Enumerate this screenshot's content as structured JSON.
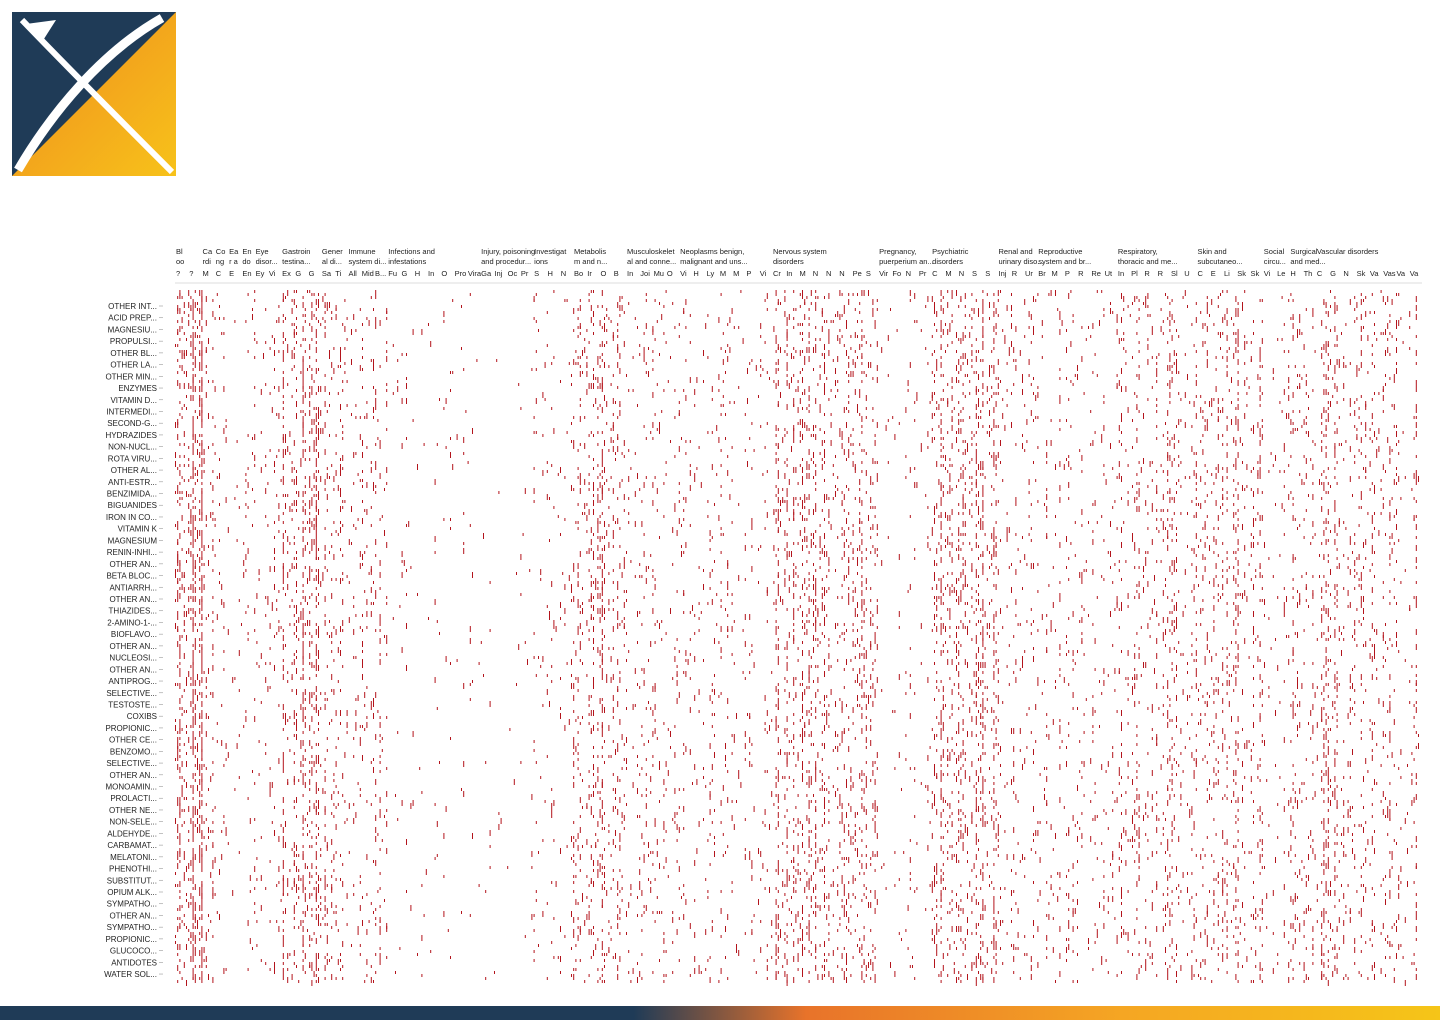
{
  "page": {
    "accent_navy": "#1f3b57",
    "accent_orange": "#f0901e",
    "accent_yellow": "#f5c518",
    "cell_color": "#b3141c"
  },
  "logo": {
    "icon": "x-logo-icon"
  },
  "chart_data": {
    "type": "heatmap",
    "title": "",
    "xlabel": "",
    "ylabel": "",
    "grid": false,
    "legend": "none",
    "column_groups": [
      {
        "label": [
          "Bl",
          "oo"
        ],
        "subs": [
          "?",
          "?"
        ]
      },
      {
        "label": [
          "Ca",
          "rdi"
        ],
        "subs": [
          "M"
        ]
      },
      {
        "label": [
          "Co",
          "ng"
        ],
        "subs": [
          "C"
        ]
      },
      {
        "label": [
          "Ea",
          "r a"
        ],
        "subs": [
          "E"
        ]
      },
      {
        "label": [
          "En",
          "do"
        ],
        "subs": [
          "En"
        ]
      },
      {
        "label": [
          "Eye",
          "disor..."
        ],
        "subs": [
          "Ey",
          "Vi"
        ]
      },
      {
        "label": [
          "Gastroin",
          "testina..."
        ],
        "subs": [
          "Ex",
          "G",
          "G"
        ]
      },
      {
        "label": [
          "Gener",
          "al di..."
        ],
        "subs": [
          "Sa",
          "Ti"
        ]
      },
      {
        "label": [
          "Immune",
          "system di..."
        ],
        "subs": [
          "All",
          "Mid",
          "B..."
        ]
      },
      {
        "label": [
          "Infections and",
          "infestations"
        ],
        "subs": [
          "Fu",
          "G",
          "H",
          "In",
          "O",
          "Pro",
          "Vira"
        ]
      },
      {
        "label": [
          "Injury, poisoning",
          "and procedur..."
        ],
        "subs": [
          "Ga",
          "Inj",
          "Oc",
          "Pr"
        ]
      },
      {
        "label": [
          "Investigat",
          "ions"
        ],
        "subs": [
          "S",
          "H",
          "N"
        ]
      },
      {
        "label": [
          "Metabolis",
          "m and n..."
        ],
        "subs": [
          "Bo",
          "Ir",
          "O",
          "B"
        ]
      },
      {
        "label": [
          "Musculoskelet",
          "al and conne..."
        ],
        "subs": [
          "In",
          "Joi",
          "Mu",
          "O"
        ]
      },
      {
        "label": [
          "Neoplasms benign,",
          "malignant and uns..."
        ],
        "subs": [
          "Vi",
          "H",
          "Ly",
          "M",
          "M",
          "P",
          "Vi"
        ]
      },
      {
        "label": [
          "Nervous system",
          "disorders"
        ],
        "subs": [
          "Cr",
          "In",
          "M",
          "N",
          "N",
          "N",
          "Pe",
          "S"
        ]
      },
      {
        "label": [
          "Pregnancy,",
          "puerperium an..."
        ],
        "subs": [
          "Vir",
          "Fo",
          "N",
          "Pr"
        ]
      },
      {
        "label": [
          "Psychiatric",
          "disorders"
        ],
        "subs": [
          "C",
          "M",
          "N",
          "S",
          "S"
        ]
      },
      {
        "label": [
          "Renal and",
          "urinary diso..."
        ],
        "subs": [
          "Inj",
          "R",
          "Ur"
        ]
      },
      {
        "label": [
          "Reproductive",
          "system and br..."
        ],
        "subs": [
          "Br",
          "M",
          "P",
          "R",
          "Re",
          "Ut"
        ]
      },
      {
        "label": [
          "Respiratory,",
          "thoracic and me..."
        ],
        "subs": [
          "In",
          "Pl",
          "R",
          "R",
          "Sl",
          "U"
        ]
      },
      {
        "label": [
          "Skin and",
          "subcutaneo..."
        ],
        "subs": [
          "C",
          "E",
          "Li",
          "Sk",
          "Sk"
        ]
      },
      {
        "label": [
          "Social",
          "circu..."
        ],
        "subs": [
          "Vi",
          "Le"
        ]
      },
      {
        "label": [
          "Surgical",
          "and med..."
        ],
        "subs": [
          "H",
          "Th"
        ]
      },
      {
        "label": [
          "Vascular disorders",
          ""
        ],
        "subs": [
          "C",
          "G",
          "N",
          "Sk",
          "Va",
          "Vas",
          "Va",
          "Va"
        ]
      }
    ],
    "rows": [
      "OTHER INT...",
      "ACID PREP...",
      "MAGNESIU...",
      "PROPULSI...",
      "OTHER BL...",
      "OTHER LA...",
      "OTHER MIN...",
      "ENZYMES",
      "VITAMIN D...",
      "INTERMEDI...",
      "SECOND-G...",
      "HYDRAZIDES",
      "NON-NUCL...",
      "ROTA VIRU...",
      "OTHER AL...",
      "ANTI-ESTR...",
      "BENZIMIDA...",
      "BIGUANIDES",
      "IRON IN CO...",
      "VITAMIN K",
      "MAGNESIUM",
      "RENIN-INHI...",
      "OTHER AN...",
      "BETA BLOC...",
      "ANTIARRH...",
      "OTHER AN...",
      "THIAZIDES...",
      "2-AMINO-1-...",
      "BIOFLAVO...",
      "OTHER AN...",
      "NUCLEOSI...",
      "OTHER AN...",
      "ANTIPROG...",
      "SELECTIVE...",
      "TESTOSTE...",
      "COXIBS",
      "PROPIONIC...",
      "OTHER CE...",
      "BENZOMO...",
      "SELECTIVE...",
      "OTHER AN...",
      "MONOAMIN...",
      "PROLACTI...",
      "OTHER NE...",
      "NON-SELE...",
      "ALDEHYDE...",
      "CARBAMAT...",
      "MELATONI...",
      "PHENOTHI...",
      "SUBSTITUT...",
      "OPIUM ALK...",
      "SYMPATHO...",
      "OTHER AN...",
      "SYMPATHO...",
      "PROPIONIC...",
      "GLUCOCO...",
      "ANTIDOTES",
      "WATER SOL..."
    ],
    "cell_density_by_group": [
      0.55,
      0.14,
      0.05,
      0.04,
      0.06,
      0.08,
      0.34,
      0.2,
      0.1,
      0.03,
      0.03,
      0.05,
      0.26,
      0.1,
      0.08,
      0.22,
      0.04,
      0.28,
      0.12,
      0.1,
      0.14,
      0.18,
      0.06,
      0.14,
      0.16
    ]
  }
}
